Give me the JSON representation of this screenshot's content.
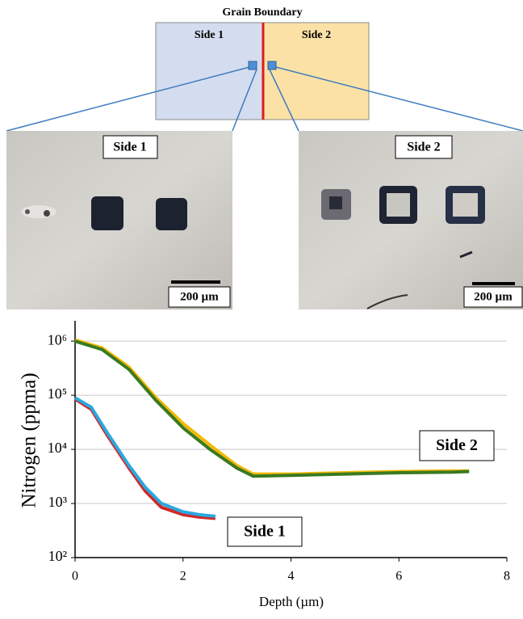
{
  "figure": {
    "title": "Grain Boundary",
    "regions": [
      "Side 1",
      "Side 2"
    ],
    "micrographs": [
      {
        "label": "Side 1",
        "scale_bar": "200 µm"
      },
      {
        "label": "Side 2",
        "scale_bar": "200 µm"
      }
    ]
  },
  "chart_data": {
    "type": "line",
    "ylabel": "Nitrogen (ppma)",
    "xlabel": "Depth (µm)",
    "xlim": [
      0,
      8
    ],
    "xticks": [
      0,
      2,
      4,
      6,
      8
    ],
    "ylim": [
      100,
      2000000
    ],
    "ylog": true,
    "grid": true,
    "yticks": [
      {
        "value": 100,
        "label": "10²"
      },
      {
        "value": 1000,
        "label": "10³"
      },
      {
        "value": 10000,
        "label": "10⁴"
      },
      {
        "value": 100000,
        "label": "10⁵"
      },
      {
        "value": 1000000,
        "label": "10⁶"
      }
    ],
    "series": [
      {
        "color": "#f5b800",
        "x": [
          0,
          0.5,
          1,
          1.5,
          2,
          2.5,
          3,
          3.3,
          4,
          5,
          6,
          7,
          7.3
        ],
        "values": [
          1050000,
          750000,
          330000,
          90000,
          30000,
          12000,
          5000,
          3500,
          3500,
          3700,
          3900,
          4000,
          4000
        ]
      },
      {
        "color": "#3a7a22",
        "x": [
          0,
          0.5,
          1,
          1.5,
          1.75,
          2,
          2.5,
          3,
          3.3,
          4,
          5,
          6,
          7,
          7.3
        ],
        "values": [
          1000000,
          700000,
          300000,
          80000,
          45000,
          25000,
          10000,
          4500,
          3200,
          3300,
          3500,
          3700,
          3800,
          3900
        ]
      },
      {
        "color": "#d02828",
        "x": [
          0,
          0.3,
          0.6,
          0.8,
          1,
          1.3,
          1.6,
          2,
          2.3,
          2.6
        ],
        "values": [
          85000,
          55000,
          18000,
          9000,
          4500,
          1700,
          850,
          620,
          560,
          530
        ]
      },
      {
        "color": "#2aa8e0",
        "x": [
          0,
          0.3,
          0.6,
          0.8,
          1,
          1.3,
          1.6,
          2,
          2.3,
          2.6
        ],
        "values": [
          90000,
          60000,
          20000,
          10000,
          5000,
          2000,
          1000,
          700,
          620,
          580
        ]
      }
    ],
    "annotations": [
      "Side 2",
      "Side 1"
    ]
  }
}
